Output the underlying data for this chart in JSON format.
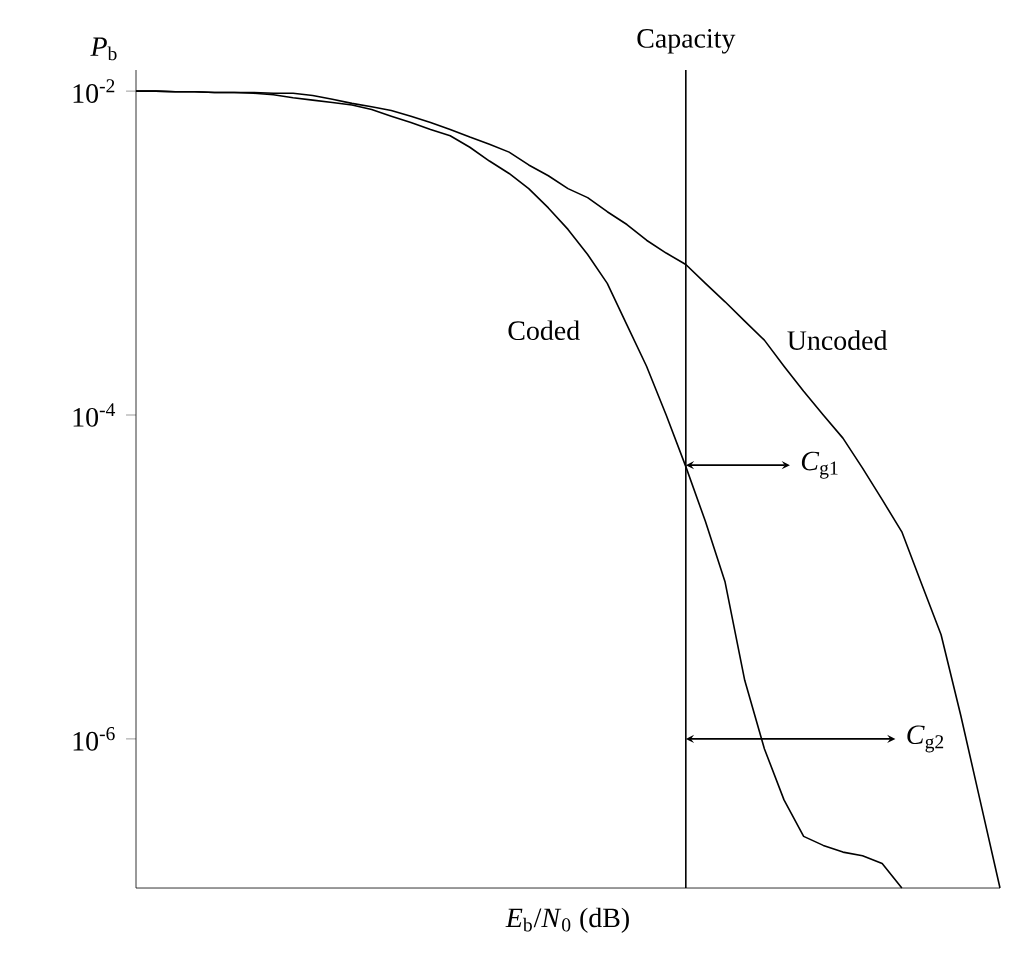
{
  "chart_data": {
    "type": "line",
    "xlabel": "*E*$_{b}$/*N*$_{0}$ (dB)",
    "ylabel": "*P*$_{b}$",
    "categories": [
      null,
      null,
      null,
      null,
      null,
      null,
      null,
      null,
      null,
      null,
      null,
      null,
      null,
      null,
      null,
      null,
      null,
      null,
      null,
      null,
      null,
      null,
      null,
      null,
      null,
      null,
      null,
      null,
      null,
      null,
      null,
      null,
      null,
      null,
      null,
      null,
      null,
      null,
      null,
      null,
      null,
      null,
      null,
      null,
      null
    ],
    "ylim": [
      1.2e-07,
      0.0135
    ],
    "log": "y",
    "tick_labels": "y",
    "yticks": [
      {
        "value": 0.01,
        "label": "10$^{-2}$"
      },
      {
        "value": 0.0001,
        "label": "10$^{-4}$"
      },
      {
        "value": 1e-06,
        "label": "10$^{-6}$"
      }
    ],
    "series": [
      {
        "name": "Coded",
        "color": "#000000",
        "values": [
          0.01,
          0.01,
          0.0099,
          0.0099,
          0.0098,
          0.0098,
          0.0097,
          0.0095,
          0.0091,
          0.0088,
          0.0085,
          0.0082,
          0.0077,
          0.007,
          0.0064,
          0.0058,
          0.0053,
          0.0045,
          0.0037,
          0.0031,
          0.0025,
          0.0019,
          0.0014,
          0.00098,
          0.00065,
          0.00036,
          0.0002,
          0.0001,
          4.8e-05,
          2.2e-05,
          9.3e-06,
          2.3e-06,
          8.7e-07,
          4.2e-07,
          2.5e-07,
          2.2e-07,
          2e-07,
          1.9e-07,
          1.7e-07,
          1.2e-07,
          null,
          null,
          null,
          null,
          null
        ]
      },
      {
        "name": "Uncoded",
        "color": "#000000",
        "values": [
          0.01,
          0.01,
          0.0099,
          0.0099,
          0.0098,
          0.0098,
          0.0098,
          0.0097,
          0.0097,
          0.0094,
          0.0089,
          0.0084,
          0.008,
          0.0076,
          0.007,
          0.0064,
          0.0058,
          0.0052,
          0.0047,
          0.0042,
          0.0035,
          0.003,
          0.0025,
          0.0022,
          0.0018,
          0.0015,
          0.0012,
          0.001,
          0.00085,
          0.00065,
          0.0005,
          0.00038,
          0.00029,
          0.0002,
          0.00014,
          0.0001,
          7.2e-05,
          4.7e-05,
          3e-05,
          1.9e-05,
          9.1e-06,
          4.4e-06,
          1.4e-06,
          4.1e-07,
          1.2e-07
        ]
      }
    ],
    "annotations": [
      "Capacity",
      "*C*$_{g1}$",
      "*C*$_{g2}$"
    ],
    "line_style": "solid"
  }
}
